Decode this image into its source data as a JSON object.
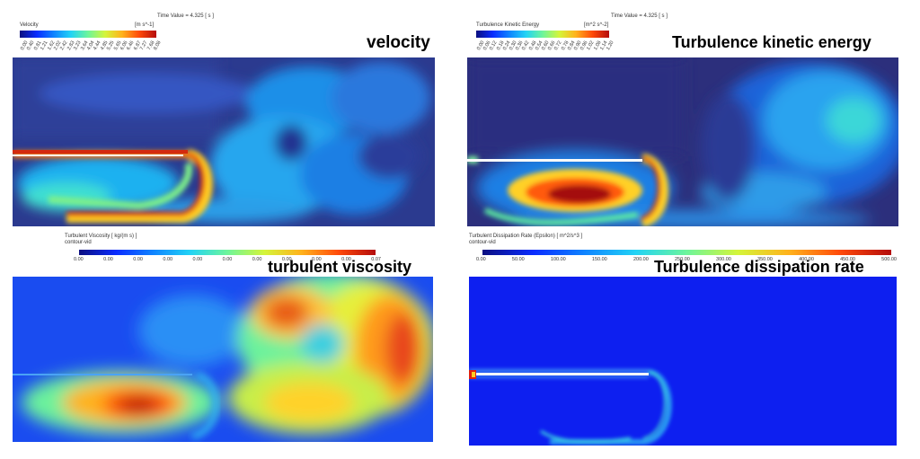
{
  "jet_colors": [
    "#0b0f80",
    "#0a2cff",
    "#0f84ff",
    "#22d3f5",
    "#6df59b",
    "#d4f53a",
    "#ffb21c",
    "#ff4a0a",
    "#b40c0c"
  ],
  "panels": {
    "velocity": {
      "title": "velocity",
      "time_label": "Time Value = 4.325 [ s ]",
      "var_label": "Velocity",
      "unit_label": "[m s^-1]",
      "ticks": [
        "0.00",
        "0.20",
        "0.40",
        "0.61",
        "0.81",
        "1.01",
        "1.21",
        "1.41",
        "1.62",
        "1.82",
        "2.02",
        "2.22",
        "2.42",
        "2.63",
        "2.83",
        "3.03",
        "3.23",
        "3.43",
        "3.64",
        "3.84",
        "4.04",
        "4.24",
        "4.44",
        "4.65",
        "4.85",
        "5.05",
        "5.25",
        "5.45",
        "5.65",
        "5.86",
        "6.06",
        "6.26",
        "6.46",
        "6.67",
        "6.87",
        "7.07",
        "7.27",
        "7.48",
        "7.68",
        "7.88",
        "8.08"
      ]
    },
    "tke": {
      "title": "Turbulence kinetic energy",
      "time_label": "Time Value = 4.325 [ s ]",
      "var_label": "Turbulence Kinetic Energy",
      "unit_label": "[m^2 s^-2]",
      "ticks": [
        "0.00",
        "0.03",
        "0.06",
        "0.09",
        "0.12",
        "0.15",
        "0.18",
        "0.21",
        "0.24",
        "0.27",
        "0.30",
        "0.33",
        "0.36",
        "0.39",
        "0.42",
        "0.45",
        "0.48",
        "0.51",
        "0.54",
        "0.57",
        "0.60",
        "0.63",
        "0.66",
        "0.69",
        "0.72",
        "0.75",
        "0.78",
        "0.81",
        "0.84",
        "0.87",
        "0.90",
        "0.93",
        "0.96",
        "0.99",
        "1.02",
        "1.05",
        "1.08",
        "1.11",
        "1.14",
        "1.17",
        "1.20"
      ]
    },
    "viscosity": {
      "title": "turbulent viscosity",
      "var_label": "Turbulent Viscosity [ kg/(m s) ]",
      "sub_label": "contour-vid",
      "ticks": [
        "0.00",
        "0.00",
        "0.00",
        "0.00",
        "0.00",
        "0.00",
        "0.00",
        "0.00",
        "0.00",
        "0.00",
        "0.07"
      ]
    },
    "dissipation": {
      "title": "Turbulence dissipation rate",
      "var_label": "Turbulent Dissipation Rate (Epsilon) [ m^2/s^3 ]",
      "sub_label": "contour-vid",
      "ticks": [
        "0.00",
        "50.00",
        "100.00",
        "150.00",
        "200.00",
        "250.00",
        "300.00",
        "350.00",
        "400.00",
        "450.00",
        "500.00"
      ]
    }
  }
}
